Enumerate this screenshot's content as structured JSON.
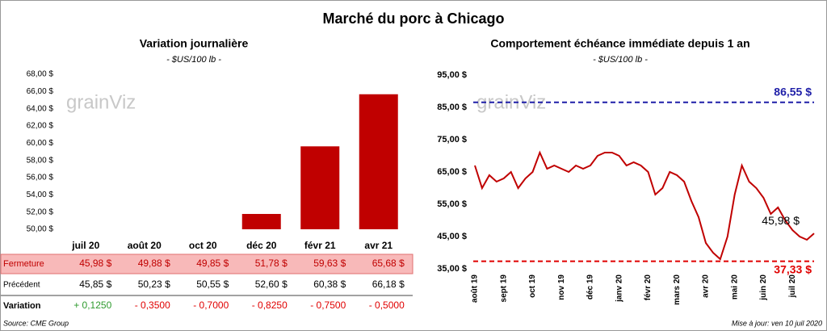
{
  "title": "Marché du porc à Chicago",
  "watermark": "grainViz",
  "chart_data": [
    {
      "type": "bar",
      "title": "Variation journalière",
      "subtitle": "- $US/100 lb -",
      "categories": [
        "juil 20",
        "août 20",
        "oct 20",
        "déc 20",
        "févr 21",
        "avr 21"
      ],
      "values": [
        45.98,
        49.88,
        49.85,
        51.78,
        59.63,
        65.68
      ],
      "value_labels": [
        "45,98 $",
        "49,88 $",
        "49,85 $",
        "51,78 $",
        "59,63 $",
        "65,68 $"
      ],
      "color": "#c00000",
      "ylim": [
        50,
        68
      ],
      "yticks": [
        {
          "value": 50,
          "label": "50,00 $"
        },
        {
          "value": 52,
          "label": "52,00 $"
        },
        {
          "value": 54,
          "label": "54,00 $"
        },
        {
          "value": 56,
          "label": "56,00 $"
        },
        {
          "value": 58,
          "label": "58,00 $"
        },
        {
          "value": 60,
          "label": "60,00 $"
        },
        {
          "value": 62,
          "label": "62,00 $"
        },
        {
          "value": 64,
          "label": "64,00 $"
        },
        {
          "value": 66,
          "label": "66,00 $"
        },
        {
          "value": 68,
          "label": "68,00 $"
        }
      ]
    },
    {
      "type": "line",
      "title": "Comportement  échéance immédiate depuis 1 an",
      "subtitle": "- $US/100 lb -",
      "categories": [
        "août 19",
        null,
        null,
        null,
        "sept 19",
        null,
        null,
        null,
        "oct 19",
        null,
        null,
        null,
        "nov 19",
        null,
        null,
        null,
        "déc 19",
        null,
        null,
        null,
        "janv 20",
        null,
        null,
        null,
        "févr 20",
        null,
        null,
        null,
        "mars 20",
        null,
        null,
        null,
        "avr 20",
        null,
        null,
        null,
        "mai 20",
        null,
        null,
        null,
        "juin 20",
        null,
        null,
        null,
        "juil 20",
        null,
        null,
        null
      ],
      "series": [
        {
          "name": "Échéance immédiate",
          "color": "#c00000",
          "values": [
            67,
            60,
            64,
            62,
            63,
            65,
            60,
            63,
            65,
            71,
            66,
            67,
            66,
            65,
            67,
            66,
            67,
            70,
            71,
            71,
            70,
            67,
            68,
            67,
            65,
            58,
            60,
            65,
            64,
            62,
            56,
            51,
            43,
            40,
            38,
            45,
            58,
            67,
            62,
            60,
            57,
            52,
            54,
            50,
            47,
            45,
            44,
            45.98
          ]
        }
      ],
      "last_label": "45,98 $",
      "ylim": [
        35,
        95
      ],
      "yticks": [
        {
          "value": 35,
          "label": "35,00 $"
        },
        {
          "value": 45,
          "label": "45,00 $"
        },
        {
          "value": 55,
          "label": "55,00 $"
        },
        {
          "value": 65,
          "label": "65,00 $"
        },
        {
          "value": 75,
          "label": "75,00 $"
        },
        {
          "value": 85,
          "label": "85,00 $"
        },
        {
          "value": 95,
          "label": "95,00 $"
        }
      ],
      "reference_lines": [
        {
          "value": 86.55,
          "label": "86,55 $",
          "color": "#1f1fa8"
        },
        {
          "value": 37.33,
          "label": "37,33 $",
          "color": "#e00000"
        }
      ]
    }
  ],
  "table": {
    "closing_label": "Fermeture",
    "rows": [
      {
        "label": "Précédent",
        "values": [
          "45,85 $",
          "50,23 $",
          "50,55 $",
          "52,60 $",
          "60,38 $",
          "66,18 $"
        ]
      },
      {
        "label": "Variation",
        "values": [
          "+ 0,1250",
          "- 0,3500",
          "- 0,7000",
          "- 0,8250",
          "- 0,7500",
          "- 0,5000"
        ]
      }
    ],
    "positive_color": "#2e9a2e",
    "negative_color": "#e00000"
  },
  "footer": {
    "source": "Source: CME Group",
    "updated": "Mise à jour: ven 10 juil 2020"
  }
}
